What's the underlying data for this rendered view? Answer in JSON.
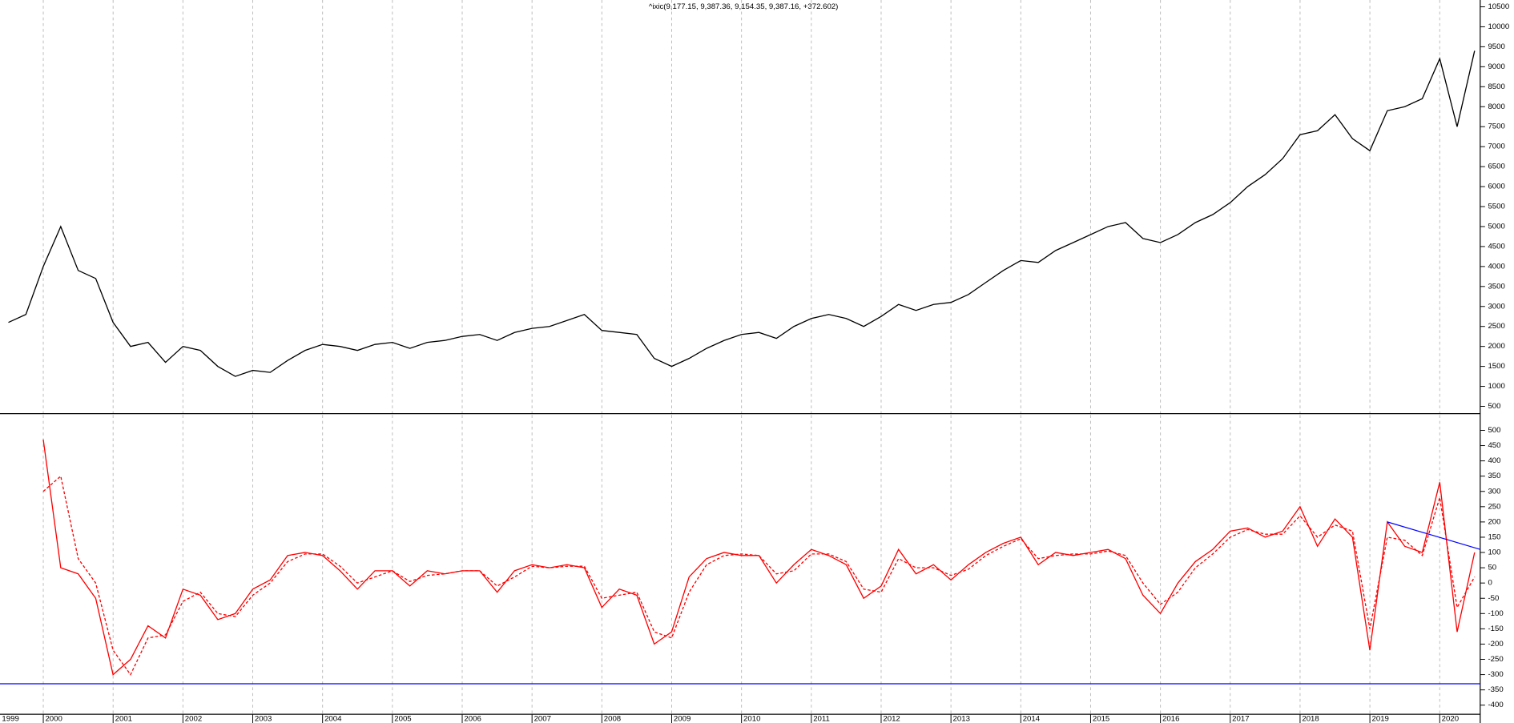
{
  "chart_data": {
    "type": "line",
    "title": "^ixic(9,177.15, 9,387.36, 9,154.35, 9,387.16, +372.602)",
    "x": [
      1999.5,
      1999.75,
      2000.0,
      2000.25,
      2000.5,
      2000.75,
      2001.0,
      2001.25,
      2001.5,
      2001.75,
      2002.0,
      2002.25,
      2002.5,
      2002.75,
      2003.0,
      2003.25,
      2003.5,
      2003.75,
      2004.0,
      2004.25,
      2004.5,
      2004.75,
      2005.0,
      2005.25,
      2005.5,
      2005.75,
      2006.0,
      2006.25,
      2006.5,
      2006.75,
      2007.0,
      2007.25,
      2007.5,
      2007.75,
      2008.0,
      2008.25,
      2008.5,
      2008.75,
      2009.0,
      2009.25,
      2009.5,
      2009.75,
      2010.0,
      2010.25,
      2010.5,
      2010.75,
      2011.0,
      2011.25,
      2011.5,
      2011.75,
      2012.0,
      2012.25,
      2012.5,
      2012.75,
      2013.0,
      2013.25,
      2013.5,
      2013.75,
      2014.0,
      2014.25,
      2014.5,
      2014.75,
      2015.0,
      2015.25,
      2015.5,
      2015.75,
      2016.0,
      2016.25,
      2016.5,
      2016.75,
      2017.0,
      2017.25,
      2017.5,
      2017.75,
      2018.0,
      2018.25,
      2018.5,
      2018.75,
      2019.0,
      2019.25,
      2019.5,
      2019.75,
      2020.0,
      2020.25,
      2020.5
    ],
    "xlim": [
      1999.38,
      2020.58
    ],
    "xticks": [
      1999,
      2000,
      2001,
      2002,
      2003,
      2004,
      2005,
      2006,
      2007,
      2008,
      2009,
      2010,
      2011,
      2012,
      2013,
      2014,
      2015,
      2016,
      2017,
      2018,
      2019,
      2020
    ],
    "grid": true,
    "panels": [
      {
        "ylim": [
          330,
          10670
        ],
        "yticks": [
          500,
          1000,
          1500,
          2000,
          2500,
          3000,
          3500,
          4000,
          4500,
          5000,
          5500,
          6000,
          6500,
          7000,
          7500,
          8000,
          8500,
          9000,
          9500,
          10000,
          10500
        ],
        "series": [
          {
            "color": "#000000",
            "line_style": "solid",
            "values": [
              2600,
              2800,
              4000,
              5000,
              3900,
              3700,
              2600,
              2000,
              2100,
              1600,
              2000,
              1900,
              1500,
              1250,
              1400,
              1350,
              1650,
              1900,
              2050,
              2000,
              1900,
              2050,
              2100,
              1950,
              2100,
              2150,
              2250,
              2300,
              2150,
              2350,
              2450,
              2500,
              2650,
              2800,
              2400,
              2350,
              2300,
              1700,
              1500,
              1700,
              1950,
              2150,
              2300,
              2350,
              2200,
              2500,
              2700,
              2800,
              2700,
              2500,
              2750,
              3050,
              2900,
              3050,
              3100,
              3300,
              3600,
              3900,
              4150,
              4100,
              4400,
              4600,
              4800,
              5000,
              5100,
              4700,
              4600,
              4800,
              5100,
              5300,
              5600,
              6000,
              6300,
              6700,
              7300,
              7400,
              7800,
              7200,
              6900,
              7900,
              8000,
              8200,
              9200,
              7500,
              9400
            ]
          }
        ]
      },
      {
        "ylim": [
          -430,
          550
        ],
        "yticks": [
          -400,
          -350,
          -300,
          -250,
          -200,
          -150,
          -100,
          -50,
          0,
          50,
          100,
          150,
          200,
          250,
          300,
          350,
          400,
          450,
          500
        ],
        "series": [
          {
            "color": "#ff0000",
            "line_style": "solid",
            "values": [
              null,
              null,
              470,
              50,
              30,
              -50,
              -300,
              -250,
              -140,
              -180,
              -20,
              -40,
              -120,
              -100,
              -20,
              10,
              90,
              100,
              90,
              40,
              -20,
              40,
              40,
              -10,
              40,
              30,
              40,
              40,
              -30,
              40,
              60,
              50,
              60,
              50,
              -80,
              -20,
              -40,
              -200,
              -160,
              20,
              80,
              100,
              90,
              90,
              0,
              60,
              110,
              90,
              60,
              -50,
              -10,
              110,
              30,
              60,
              10,
              60,
              100,
              130,
              150,
              60,
              100,
              90,
              100,
              110,
              80,
              -40,
              -100,
              0,
              70,
              110,
              170,
              180,
              150,
              170,
              250,
              120,
              210,
              150,
              -220,
              200,
              120,
              100,
              330,
              -160,
              100
            ]
          },
          {
            "color": "#ff0000",
            "line_style": "dashed",
            "values": [
              null,
              null,
              300,
              350,
              80,
              0,
              -220,
              -300,
              -180,
              -170,
              -60,
              -30,
              -100,
              -110,
              -40,
              0,
              70,
              95,
              95,
              55,
              0,
              20,
              40,
              5,
              25,
              30,
              40,
              40,
              -10,
              20,
              55,
              50,
              55,
              55,
              -50,
              -40,
              -30,
              -160,
              -180,
              -30,
              60,
              90,
              95,
              90,
              30,
              40,
              95,
              95,
              70,
              -20,
              -30,
              80,
              50,
              50,
              25,
              45,
              90,
              120,
              145,
              80,
              90,
              95,
              95,
              105,
              90,
              0,
              -70,
              -30,
              50,
              95,
              150,
              175,
              160,
              160,
              220,
              150,
              190,
              170,
              -150,
              150,
              140,
              90,
              280,
              -80,
              20
            ]
          }
        ],
        "hline": {
          "value": -330,
          "color": "#0000ff"
        },
        "trendline": {
          "x": [
            2019.25,
            2020.58
          ],
          "values": [
            200,
            110
          ],
          "color": "#0000ff"
        }
      }
    ]
  }
}
